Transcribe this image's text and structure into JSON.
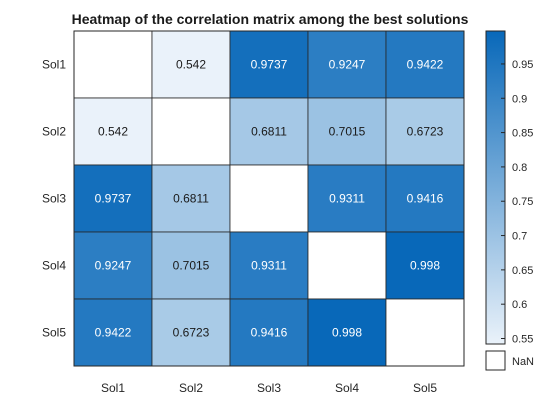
{
  "chart_data": {
    "type": "heatmap",
    "title": "Heatmap of the correlation matrix among the best solutions",
    "rows": [
      "Sol1",
      "Sol2",
      "Sol3",
      "Sol4",
      "Sol5"
    ],
    "columns": [
      "Sol1",
      "Sol2",
      "Sol3",
      "Sol4",
      "Sol5"
    ],
    "values": [
      [
        null,
        0.542,
        0.9737,
        0.9247,
        0.9422
      ],
      [
        0.542,
        null,
        0.6811,
        0.7015,
        0.6723
      ],
      [
        0.9737,
        0.6811,
        null,
        0.9311,
        0.9416
      ],
      [
        0.9247,
        0.7015,
        0.9311,
        null,
        0.998
      ],
      [
        0.9422,
        0.6723,
        0.9416,
        0.998,
        null
      ]
    ],
    "labels": [
      [
        "",
        "0.542",
        "0.9737",
        "0.9247",
        "0.9422"
      ],
      [
        "0.542",
        "",
        "0.6811",
        "0.7015",
        "0.6723"
      ],
      [
        "0.9737",
        "0.6811",
        "",
        "0.9311",
        "0.9416"
      ],
      [
        "0.9247",
        "0.7015",
        "0.9311",
        "",
        "0.998"
      ],
      [
        "0.9422",
        "0.6723",
        "0.9416",
        "0.998",
        ""
      ]
    ],
    "colorbar": {
      "range": [
        0.542,
        0.998
      ],
      "ticks": [
        0.55,
        0.6,
        0.65,
        0.7,
        0.75,
        0.8,
        0.85,
        0.9,
        0.95
      ],
      "tick_labels": [
        "0.55",
        "0.6",
        "0.65",
        "0.7",
        "0.75",
        "0.8",
        "0.85",
        "0.9",
        "0.95"
      ],
      "low_color": "#eaf2fa",
      "high_color": "#0868b9",
      "missing_label": "NaN"
    },
    "grid": true
  }
}
